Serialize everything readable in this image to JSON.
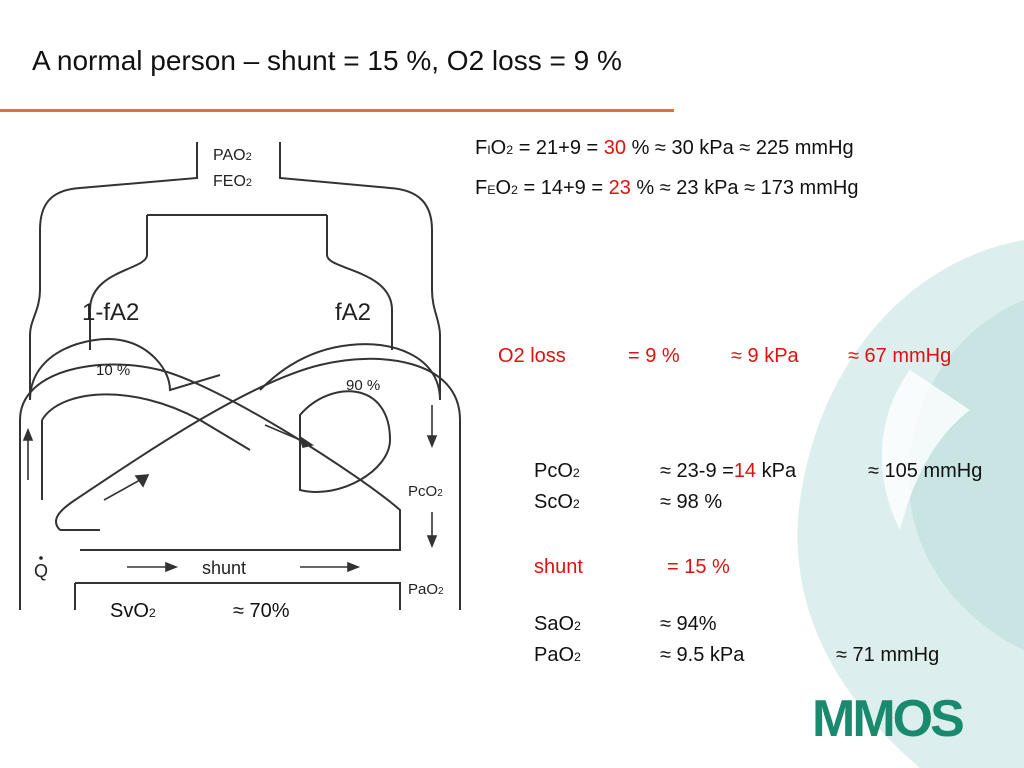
{
  "slide": {
    "title": "A normal person – shunt = 15 %,  O2 loss  = 9 %",
    "accent_color": "#ee6f2d",
    "highlight_color": "#e01010"
  },
  "fio2": {
    "label_f": "F",
    "label_sub": "I",
    "label_o": "O",
    "label_2": "2",
    "expr_prefix": " = 21+9 = ",
    "value": "30",
    "expr_suffix": " %   ≈ 30 kPa ≈ 225 mmHg"
  },
  "feo2": {
    "label_f": "F",
    "label_sub": "E",
    "label_o": "O",
    "label_2": "2",
    "expr_prefix": " = 14+9 = ",
    "value": "23",
    "expr_suffix": " %  ≈ 23 kPa ≈ 173 mmHg"
  },
  "o2_loss": {
    "label": "O2 loss",
    "eq": "=  9 %",
    "kpa": "≈ 9 kPa",
    "mmhg": "≈ 67 mmHg"
  },
  "pco2": {
    "label": "PcO",
    "sub": "2",
    "approx": "≈  23-9 =",
    "value": "14",
    "unit": " kPa",
    "mmhg": "≈ 105 mmHg"
  },
  "sco2": {
    "label": "ScO",
    "sub": "2",
    "value": "≈  98 %"
  },
  "shunt": {
    "label": "shunt",
    "value": "= 15 %"
  },
  "sao2": {
    "label": "SaO",
    "sub": "2",
    "value": "≈  94%"
  },
  "pao2": {
    "label": "PaO",
    "sub": "2",
    "kpa": "≈  9.5 kPa",
    "mmhg": "≈ 71 mmHg"
  },
  "svo2": {
    "label": "SvO",
    "sub": "2",
    "value": "≈  70%"
  },
  "diagram": {
    "pa_label": "PAO",
    "pa_sub": "2",
    "fe_label": "FEO",
    "fe_sub": "2",
    "left_alveolus": "1-fA2",
    "right_alveolus": "fA2",
    "left_pct": "10 %",
    "right_pct": "90 %",
    "q_label": "Q",
    "shunt_label": "shunt",
    "pco2_label": "PcO",
    "pco2_sub": "2",
    "pao2_label": "PaO",
    "pao2_sub": "2"
  },
  "logo": {
    "text": "MMOS",
    "color": "#1a8a6e"
  }
}
